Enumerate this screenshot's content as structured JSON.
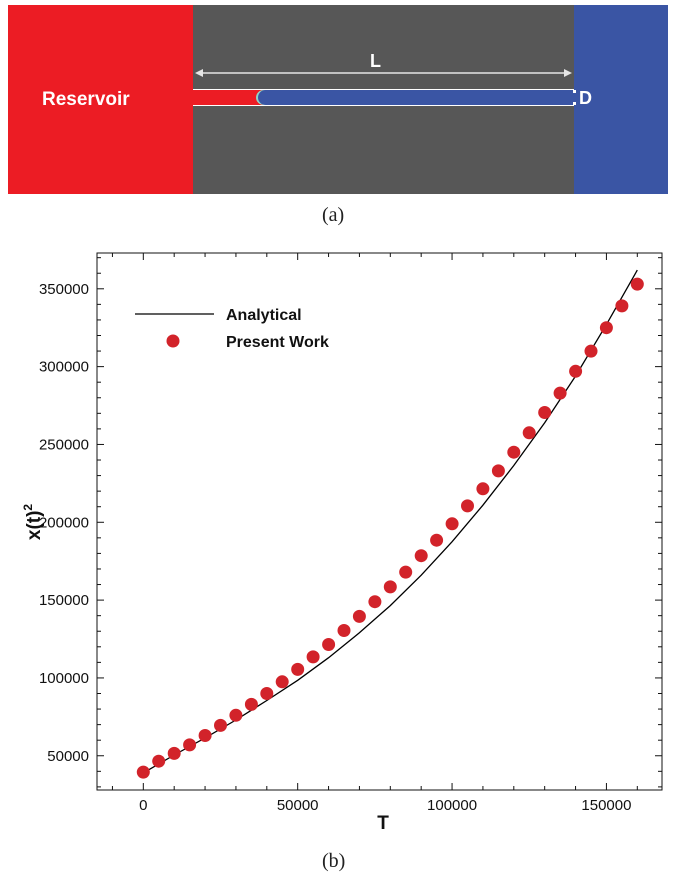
{
  "panel_a": {
    "reservoir_label": "Reservoir",
    "length_label": "L",
    "diameter_label": "D",
    "caption": "(a)",
    "colors": {
      "reservoir": "#ec1c24",
      "wall": "#575757",
      "outlet": "#3a55a4",
      "interface": "#8fd5c6"
    }
  },
  "panel_b": {
    "caption": "(b)"
  },
  "chart_data": {
    "type": "line",
    "title": "",
    "xlabel": "T",
    "ylabel": "x(t)",
    "ylabel_superscript": "2",
    "xlim": [
      -15000,
      168000
    ],
    "ylim": [
      28000,
      373000
    ],
    "xticks": [
      0,
      50000,
      100000,
      150000
    ],
    "xtick_labels": [
      "0",
      "50000",
      "100000",
      "150000"
    ],
    "yticks": [
      50000,
      100000,
      150000,
      200000,
      250000,
      300000,
      350000
    ],
    "ytick_labels": [
      "50000",
      "100000",
      "150000",
      "200000",
      "250000",
      "300000",
      "350000"
    ],
    "grid": false,
    "legend_position": "top-left",
    "series": [
      {
        "name": "Analytical",
        "kind": "line",
        "color": "#000000",
        "x": [
          0,
          10000,
          20000,
          30000,
          40000,
          50000,
          60000,
          70000,
          80000,
          90000,
          100000,
          110000,
          120000,
          130000,
          140000,
          150000,
          160000
        ],
        "y": [
          39000,
          50500,
          61500,
          73000,
          85500,
          98500,
          113000,
          129000,
          146500,
          166000,
          187500,
          211000,
          236500,
          264000,
          294000,
          327000,
          362000
        ]
      },
      {
        "name": "Present Work",
        "kind": "scatter",
        "color": "#d2232a",
        "x": [
          0,
          5000,
          10000,
          15000,
          20000,
          25000,
          30000,
          35000,
          40000,
          45000,
          50000,
          55000,
          60000,
          65000,
          70000,
          75000,
          80000,
          85000,
          90000,
          95000,
          100000,
          105000,
          110000,
          115000,
          120000,
          125000,
          130000,
          135000,
          140000,
          145000,
          150000,
          155000,
          160000
        ],
        "y": [
          39500,
          46500,
          51500,
          57000,
          63000,
          69500,
          76000,
          83000,
          90000,
          97500,
          105500,
          113500,
          121500,
          130500,
          139500,
          149000,
          158500,
          168000,
          178500,
          188500,
          199000,
          210500,
          221500,
          233000,
          245000,
          257500,
          270500,
          283000,
          297000,
          310000,
          325000,
          339000,
          353000
        ]
      }
    ]
  }
}
